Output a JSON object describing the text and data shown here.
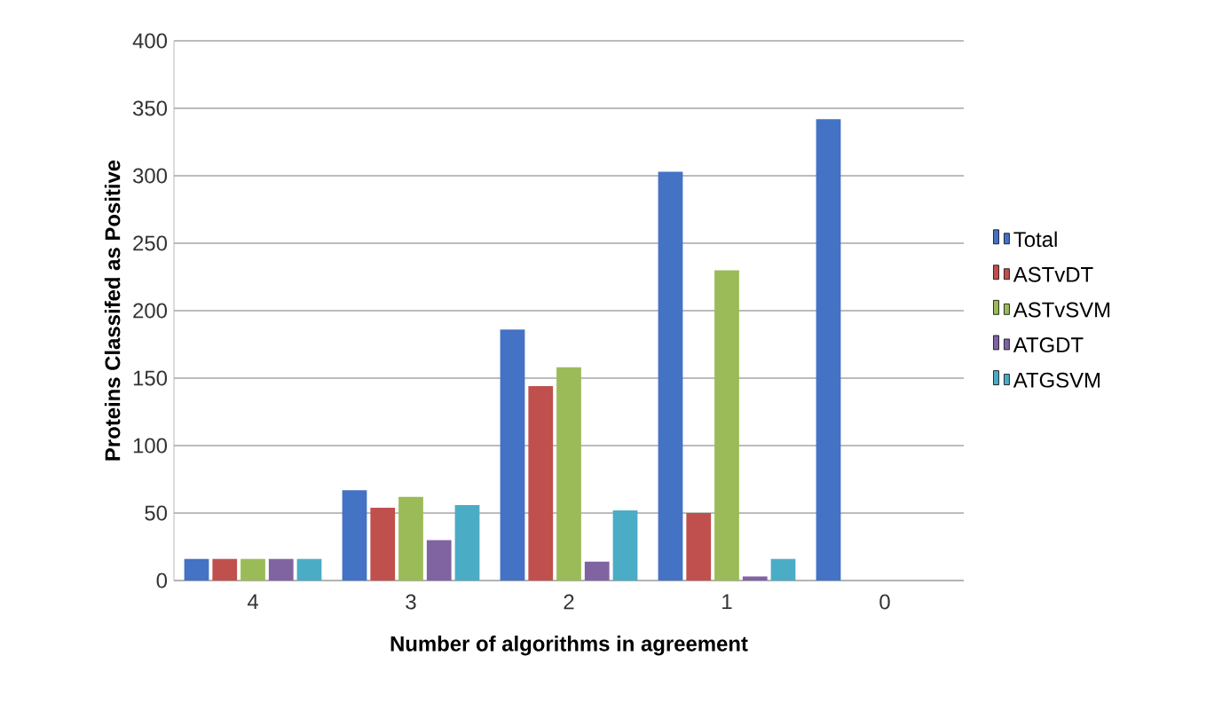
{
  "chart_data": {
    "type": "bar",
    "xlabel": "Number of algorithms in agreement",
    "ylabel": "Proteins Classifed as Positive",
    "categories": [
      "4",
      "3",
      "2",
      "1",
      "0"
    ],
    "series": [
      {
        "name": "Total",
        "color": "#4472c4",
        "values": [
          16,
          67,
          186,
          303,
          342
        ]
      },
      {
        "name": "ASTvDT",
        "color": "#c0504d",
        "values": [
          16,
          54,
          144,
          50,
          0
        ]
      },
      {
        "name": "ASTvSVM",
        "color": "#9bbb59",
        "values": [
          16,
          62,
          158,
          230,
          0
        ]
      },
      {
        "name": "ATGDT",
        "color": "#8064a2",
        "values": [
          16,
          30,
          14,
          3,
          0
        ]
      },
      {
        "name": "ATGSVM",
        "color": "#4bacc6",
        "values": [
          16,
          56,
          52,
          16,
          0
        ]
      }
    ],
    "ylim": [
      0,
      400
    ],
    "yticks": [
      0,
      50,
      100,
      150,
      200,
      250,
      300,
      350,
      400
    ],
    "grid": "y",
    "legend": "right"
  }
}
